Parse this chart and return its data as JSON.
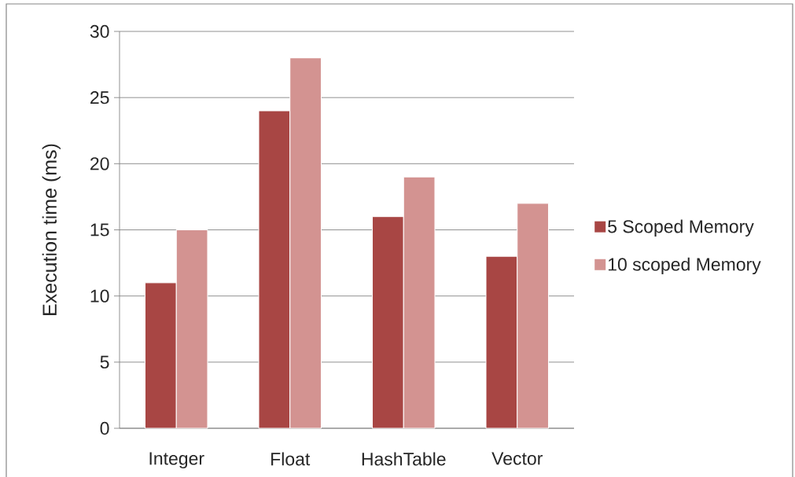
{
  "chart_data": {
    "type": "bar",
    "ylabel": "Execution time (ms)",
    "categories": [
      "Integer",
      "Float",
      "HashTable",
      "Vector"
    ],
    "series": [
      {
        "name": "5 Scoped Memory",
        "color": "#a84644",
        "values": [
          11,
          24,
          16,
          13
        ]
      },
      {
        "name": "10 scoped Memory",
        "color": "#d39391",
        "values": [
          15,
          28,
          19,
          17
        ]
      }
    ],
    "ylim": [
      0,
      30
    ],
    "yticks": [
      0,
      5,
      10,
      15,
      20,
      25,
      30
    ],
    "grid": "y",
    "legend": "right"
  }
}
